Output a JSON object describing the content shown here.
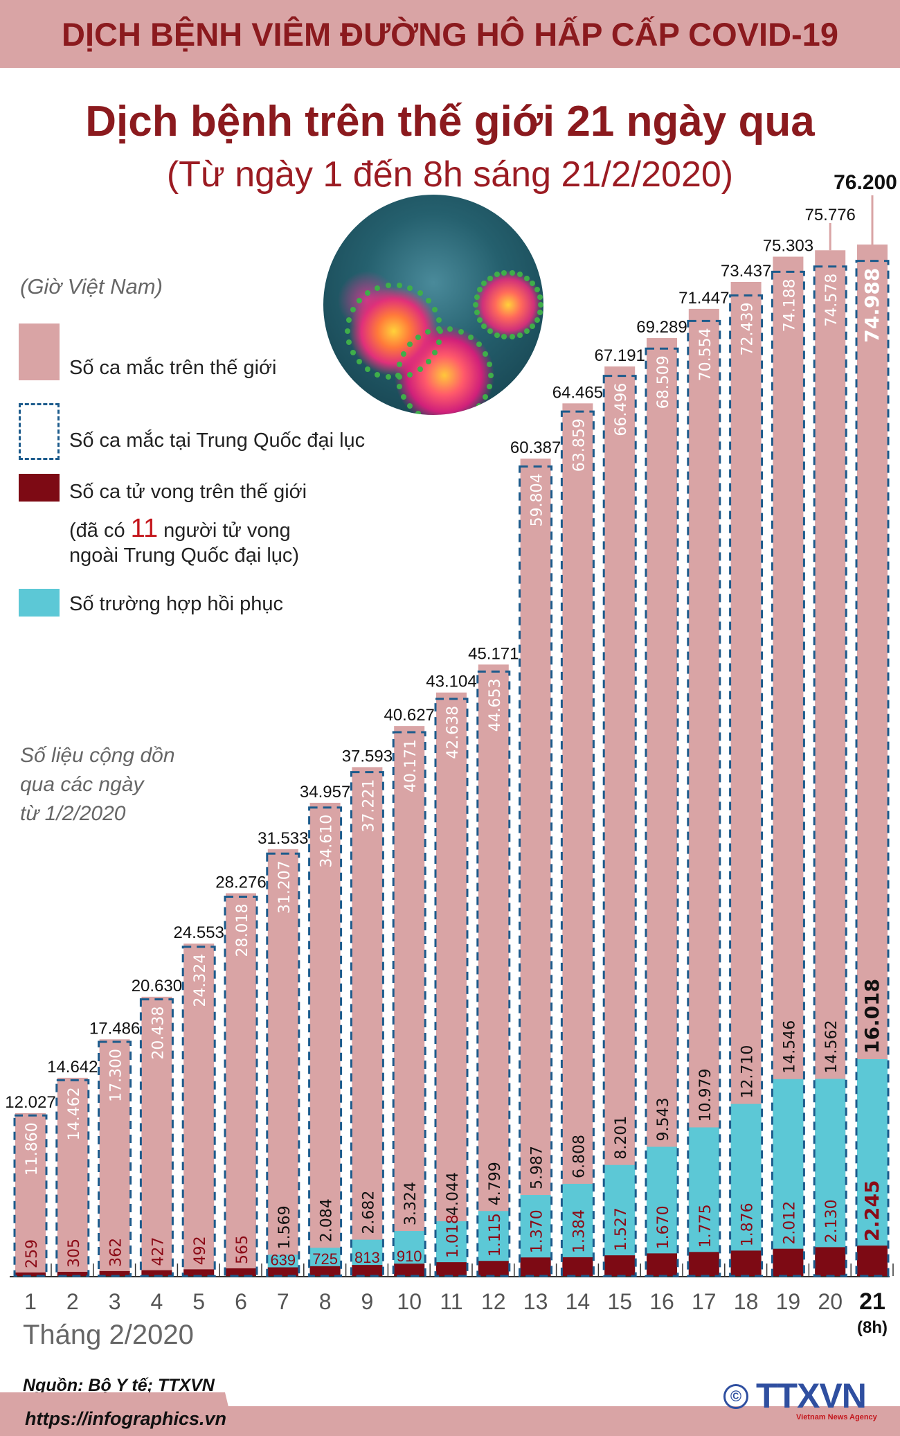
{
  "header": {
    "banner": "DỊCH BỆNH VIÊM ĐƯỜNG HÔ HẤP CẤP COVID-19"
  },
  "title": "Dịch bệnh trên thế giới 21 ngày qua",
  "subtitle": "(Từ ngày 1 đến 8h sáng 21/2/2020)",
  "legend": {
    "timezone_note": "(Giờ Việt Nam)",
    "items": [
      {
        "label": "Số ca mắc trên thế giới",
        "color": "#d9a4a5"
      },
      {
        "label": "Số ca mắc tại Trung Quốc đại lục",
        "color": "#1c5b8c"
      },
      {
        "label": "Số ca tử vong trên thế giới",
        "color": "#7d0a14"
      },
      {
        "label": "Số trường hợp hồi phục",
        "color": "#5cc8d6"
      }
    ],
    "death_note_prefix": "(đã có ",
    "death_note_number": "11",
    "death_note_suffix": " người tử vong",
    "death_note_line2": "ngoài Trung Quốc đại lục)"
  },
  "cumulative_note": [
    "Số liệu cộng dồn",
    "qua các ngày",
    "từ 1/2/2020"
  ],
  "chart_data": {
    "type": "bar",
    "xlabel": "Tháng 2/2020",
    "categories": [
      "1",
      "2",
      "3",
      "4",
      "5",
      "6",
      "7",
      "8",
      "9",
      "10",
      "11",
      "12",
      "13",
      "14",
      "15",
      "16",
      "17",
      "18",
      "19",
      "20",
      "21"
    ],
    "last_category_note": "(8h)",
    "series": [
      {
        "name": "Số ca mắc trên thế giới",
        "color": "#d9a4a5",
        "values": [
          12027,
          14642,
          17486,
          20630,
          24553,
          28276,
          31533,
          34957,
          37593,
          40627,
          43104,
          45171,
          60387,
          64465,
          67191,
          69289,
          71447,
          73437,
          75303,
          75776,
          76200
        ]
      },
      {
        "name": "Số ca mắc tại Trung Quốc đại lục",
        "color": "#1c5b8c",
        "values": [
          11860,
          14462,
          17300,
          20438,
          24324,
          28018,
          31207,
          34610,
          37221,
          40171,
          42638,
          44653,
          59804,
          63859,
          66496,
          68509,
          70554,
          72439,
          74188,
          74578,
          74988
        ]
      },
      {
        "name": "Số trường hợp hồi phục",
        "color": "#5cc8d6",
        "values": [
          null,
          null,
          null,
          null,
          null,
          null,
          1569,
          2084,
          2682,
          3324,
          4044,
          4799,
          5987,
          6808,
          8201,
          9543,
          10979,
          12710,
          14546,
          14562,
          16018
        ]
      },
      {
        "name": "Số ca tử vong trên thế giới",
        "color": "#7d0a14",
        "values": [
          259,
          305,
          362,
          427,
          492,
          565,
          639,
          725,
          813,
          910,
          1018,
          1115,
          1370,
          1384,
          1527,
          1670,
          1775,
          1876,
          2012,
          2130,
          2245
        ]
      }
    ],
    "ylim": [
      0,
      76200
    ],
    "grid": false
  },
  "footer": {
    "source": "Nguồn: Bộ Y tế; TTXVN",
    "url": "https://infographics.vn",
    "logo_text": "TTXVN",
    "logo_sub": "Vietnam News Agency"
  }
}
